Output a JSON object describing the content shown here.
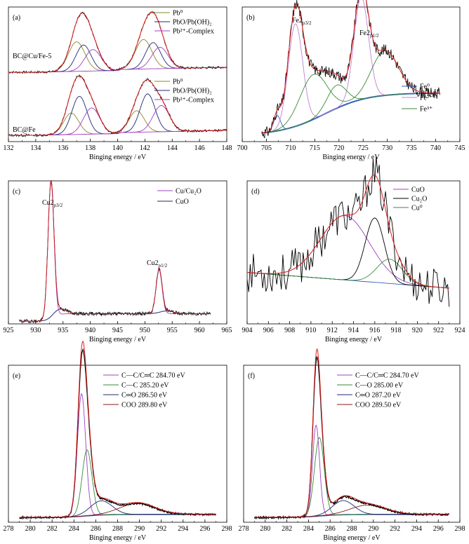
{
  "colors": {
    "black": "#000000",
    "red": "#e02020",
    "olive": "#8a8a2a",
    "navy": "#1f2a70",
    "purple": "#a040c0",
    "green": "#3a8a3a",
    "blue": "#3060c0",
    "violet": "#c080d0",
    "darkred": "#8b1a1a",
    "baseline": "#3050a0"
  },
  "chart_data": [
    {
      "id": "a",
      "type": "line",
      "panel_label": "(a)",
      "xlabel": "Binging energy / eV",
      "x_ticks": [
        132,
        134,
        136,
        138,
        140,
        142,
        144,
        146,
        148
      ],
      "xlim": [
        132,
        148
      ],
      "stack_labels": [
        "BC@Cu/Fe-5",
        "BC@Fe"
      ],
      "legend_top": [
        "Pb⁰",
        "PbO/Pb(OH)₂",
        "Pb²⁺-Complex"
      ],
      "legend_bottom": [
        "Pb⁰",
        "PbO/Pb(OH)₂",
        "Pb²⁺-Complex"
      ],
      "upper": {
        "peaks": [
          {
            "name": "Pb⁰",
            "centers": [
              137.0,
              141.9
            ],
            "amp": 0.62,
            "sigma": 0.6
          },
          {
            "name": "PbO/Pb(OH)₂",
            "centers": [
              137.5,
              142.6
            ],
            "amp": 0.55,
            "sigma": 0.55
          },
          {
            "name": "Pb²⁺-Complex",
            "centers": [
              138.2,
              143.1
            ],
            "amp": 0.45,
            "sigma": 0.6
          }
        ],
        "envelope_max": 0.9
      },
      "lower": {
        "peaks": [
          {
            "name": "Pb⁰",
            "centers": [
              136.6,
              141.4
            ],
            "amp": 0.45,
            "sigma": 0.55
          },
          {
            "name": "PbO/Pb(OH)₂",
            "centers": [
              137.2,
              142.2
            ],
            "amp": 0.8,
            "sigma": 0.55
          },
          {
            "name": "Pb²⁺-Complex",
            "centers": [
              138.1,
              143.2
            ],
            "amp": 0.55,
            "sigma": 0.6
          }
        ],
        "envelope_max": 0.92
      }
    },
    {
      "id": "b",
      "type": "line",
      "panel_label": "(b)",
      "xlabel": "Binging energy / eV",
      "x_ticks": [
        700,
        705,
        710,
        715,
        720,
        725,
        730,
        735,
        740,
        745
      ],
      "xlim": [
        700,
        745
      ],
      "annotations": [
        "Fe2p3/2",
        "Fe2p1/2"
      ],
      "legend": [
        "Fe⁰",
        "Fe²⁺",
        "Fe³⁺"
      ],
      "peaks": [
        {
          "name": "Fe⁰",
          "centers": [
            707.2
          ],
          "amp": 0.12,
          "sigma": 0.7
        },
        {
          "name": "Fe²⁺",
          "centers": [
            711.0,
            724.6
          ],
          "amp": 0.8,
          "sigma": 1.5
        },
        {
          "name": "Fe³⁺",
          "centers": [
            714.7,
            729.5
          ],
          "amp": 0.35,
          "sigma": 2.8
        },
        {
          "name": "satellite",
          "centers": [
            719.5
          ],
          "amp": 0.18,
          "sigma": 2.0
        }
      ],
      "ylim": [
        0,
        1
      ]
    },
    {
      "id": "c",
      "type": "line",
      "panel_label": "(c)",
      "xlabel": "Binging energy / eV",
      "x_ticks": [
        925,
        930,
        935,
        940,
        945,
        950,
        955,
        960,
        965
      ],
      "xlim": [
        925,
        965
      ],
      "annotations": [
        "Cu2p3/2",
        "Cu2p1/2"
      ],
      "legend": [
        "Cu/Cu₂O",
        "CuO"
      ],
      "peaks": [
        {
          "name": "Cu/Cu₂O",
          "centers": [
            932.8,
            952.6
          ],
          "amp": [
            1.0,
            0.32
          ],
          "sigma": 0.55
        },
        {
          "name": "CuO",
          "centers": [
            934.4,
            954.0
          ],
          "amp": [
            0.04,
            0.02
          ],
          "sigma": 1.2
        }
      ],
      "ylim": [
        0,
        1.05
      ]
    },
    {
      "id": "d",
      "type": "line",
      "panel_label": "(d)",
      "xlabel": "Binging energy / eV",
      "x_ticks": [
        904,
        906,
        908,
        910,
        912,
        914,
        916,
        918,
        920,
        922,
        924
      ],
      "xlim": [
        904,
        924
      ],
      "legend": [
        "CuO",
        "Cu₂O",
        "Cu⁰"
      ],
      "peaks": [
        {
          "name": "CuO",
          "centers": [
            913.2
          ],
          "amp": 0.45,
          "sigma": 2.3
        },
        {
          "name": "Cu₂O",
          "centers": [
            916.0
          ],
          "amp": 0.45,
          "sigma": 0.9
        },
        {
          "name": "Cu⁰",
          "centers": [
            917.4
          ],
          "amp": 0.17,
          "sigma": 1.2
        }
      ],
      "ylim": [
        0,
        1
      ]
    },
    {
      "id": "e",
      "type": "line",
      "panel_label": "(e)",
      "xlabel": "Binging energy / eV",
      "x_ticks": [
        278,
        280,
        282,
        284,
        286,
        288,
        290,
        292,
        294,
        296,
        298
      ],
      "xlim": [
        278,
        298
      ],
      "legend": [
        "C—C/C═C  284.70 eV",
        "C—C  285.20 eV",
        "C═O  286.50 eV",
        "COO  289.80 eV"
      ],
      "peaks": [
        {
          "name": "C—C/C═C",
          "centers": [
            284.7
          ],
          "amp": 0.78,
          "sigma": 0.38
        },
        {
          "name": "C—C",
          "centers": [
            285.2
          ],
          "amp": 0.42,
          "sigma": 0.45
        },
        {
          "name": "C═O",
          "centers": [
            286.5
          ],
          "amp": 0.09,
          "sigma": 1.0
        },
        {
          "name": "COO",
          "centers": [
            289.8
          ],
          "amp": 0.07,
          "sigma": 1.6
        }
      ],
      "ylim": [
        0,
        1
      ]
    },
    {
      "id": "f",
      "type": "line",
      "panel_label": "(f)",
      "xlabel": "Binging energy / eV",
      "x_ticks": [
        278,
        280,
        282,
        284,
        286,
        288,
        290,
        292,
        294,
        296,
        298
      ],
      "xlim": [
        278,
        298
      ],
      "legend": [
        "C—C/C═C  284.70 eV",
        "C—O  285.00 eV",
        "C═O  287.20 eV",
        "COO  289.50 eV"
      ],
      "peaks": [
        {
          "name": "C—C/C═C",
          "centers": [
            284.7
          ],
          "amp": 0.58,
          "sigma": 0.32
        },
        {
          "name": "C—O",
          "centers": [
            285.0
          ],
          "amp": 0.5,
          "sigma": 0.45
        },
        {
          "name": "C═O",
          "centers": [
            287.2
          ],
          "amp": 0.09,
          "sigma": 1.0
        },
        {
          "name": "COO",
          "centers": [
            289.5
          ],
          "amp": 0.06,
          "sigma": 1.6
        }
      ],
      "ylim": [
        0,
        1
      ]
    }
  ]
}
